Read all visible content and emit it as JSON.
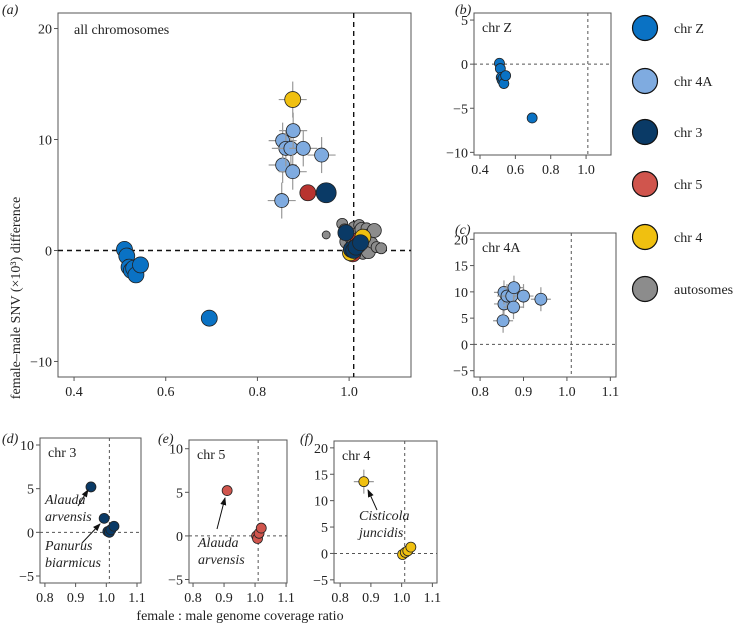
{
  "chart_data": {
    "type": "scatter",
    "xlabel": "female : male genome coverage ratio",
    "ylabel": "female–male SNV (×10³) difference",
    "colors": {
      "chrZ": "#0a72c4",
      "chr4A": "#7fabe0",
      "chr3": "#0a3a66",
      "chr5": "#b8332f",
      "chr5_light": "#d0554d",
      "chr4": "#f0c010",
      "autosomes": "#8c8c8c"
    },
    "legend": [
      {
        "key": "chrZ",
        "label": "chr Z"
      },
      {
        "key": "chr4A",
        "label": "chr 4A"
      },
      {
        "key": "chr3",
        "label": "chr 3"
      },
      {
        "key": "chr5",
        "label": "chr 5"
      },
      {
        "key": "chr4",
        "label": "chr 4"
      },
      {
        "key": "autosomes",
        "label": "autosomes"
      }
    ],
    "series": {
      "chrZ": [
        [
          0.51,
          0.1
        ],
        [
          0.515,
          -0.5
        ],
        [
          0.52,
          -1.5
        ],
        [
          0.525,
          -1.8
        ],
        [
          0.53,
          -1.6
        ],
        [
          0.535,
          -2.2
        ],
        [
          0.545,
          -1.3
        ],
        [
          0.695,
          -6.1
        ]
      ],
      "chr4A": [
        [
          0.853,
          4.5
        ],
        [
          0.855,
          7.7
        ],
        [
          0.855,
          9.9
        ],
        [
          0.862,
          9.2
        ],
        [
          0.873,
          9.2
        ],
        [
          0.877,
          7.1
        ],
        [
          0.878,
          10.8
        ],
        [
          0.9,
          9.2
        ],
        [
          0.94,
          8.6
        ]
      ],
      "chr3": [
        [
          0.95,
          5.2
        ],
        [
          0.993,
          1.6
        ],
        [
          1.005,
          0.1
        ],
        [
          1.01,
          0.0
        ],
        [
          1.015,
          0.3
        ],
        [
          1.025,
          0.7
        ]
      ],
      "chr5": [
        [
          0.91,
          5.2
        ],
        [
          1.005,
          0.0
        ],
        [
          1.008,
          -0.3
        ],
        [
          1.013,
          0.3
        ],
        [
          1.02,
          0.9
        ]
      ],
      "chr4": [
        [
          0.877,
          13.6
        ],
        [
          1.003,
          -0.2
        ],
        [
          1.012,
          0.2
        ],
        [
          1.02,
          0.5
        ],
        [
          1.03,
          1.2
        ]
      ],
      "autosomes": [
        [
          0.95,
          1.4
        ],
        [
          0.985,
          2.4
        ],
        [
          0.99,
          1.9
        ],
        [
          0.995,
          0.8
        ],
        [
          1.0,
          0.2
        ],
        [
          1.0,
          -0.4
        ],
        [
          1.005,
          1.2
        ],
        [
          1.005,
          0.5
        ],
        [
          1.01,
          2.1
        ],
        [
          1.012,
          -0.2
        ],
        [
          1.015,
          0.9
        ],
        [
          1.018,
          1.6
        ],
        [
          1.02,
          0.0
        ],
        [
          1.022,
          2.3
        ],
        [
          1.025,
          0.6
        ],
        [
          1.028,
          1.9
        ],
        [
          1.03,
          -0.3
        ],
        [
          1.032,
          1.2
        ],
        [
          1.035,
          0.4
        ],
        [
          1.038,
          2.0
        ],
        [
          1.04,
          1.0
        ],
        [
          1.042,
          -0.1
        ],
        [
          1.045,
          1.5
        ],
        [
          1.05,
          0.7
        ],
        [
          1.055,
          1.8
        ],
        [
          1.06,
          0.3
        ],
        [
          1.07,
          0.2
        ],
        [
          1.015,
          0.3
        ],
        [
          1.018,
          0.1
        ]
      ]
    },
    "panels": [
      {
        "id": "a",
        "label": "(a)",
        "title": "all chromosomes",
        "series": [
          "chrZ",
          "chr4A",
          "chr3",
          "chr5",
          "chr4",
          "autosomes"
        ],
        "xlim": [
          0.365,
          1.135
        ],
        "ylim": [
          -11.4,
          21.4
        ],
        "xticks": [
          "0.4",
          "0.6",
          "0.8",
          "1.0"
        ],
        "yticks": [
          "−10",
          "0",
          "10",
          "20"
        ],
        "ref": [
          1.01,
          0
        ]
      },
      {
        "id": "b",
        "label": "(b)",
        "title": "chr Z",
        "series": [
          "chrZ"
        ],
        "xlim": [
          0.366,
          1.141
        ],
        "ylim": [
          -10.3,
          5.8
        ],
        "xticks": [
          "0.4",
          "0.6",
          "0.8",
          "1.0"
        ],
        "yticks": [
          "−10",
          "−5",
          "0",
          "5"
        ],
        "ref": [
          1.01,
          0
        ]
      },
      {
        "id": "c",
        "label": "(c)",
        "title": "chr 4A",
        "series": [
          "chr4A"
        ],
        "xlim": [
          0.786,
          1.113
        ],
        "ylim": [
          -6.2,
          21.2
        ],
        "xticks": [
          "0.8",
          "0.9",
          "1.0",
          "1.1"
        ],
        "yticks": [
          "−5",
          "0",
          "5",
          "10",
          "15",
          "20"
        ],
        "ref": [
          1.01,
          0
        ]
      },
      {
        "id": "d",
        "label": "(d)",
        "title": "chr 3",
        "series": [
          "chr3"
        ],
        "xlim": [
          0.784,
          1.113
        ],
        "ylim": [
          -5.8,
          10.8
        ],
        "xticks": [
          "0.8",
          "0.9",
          "1.0",
          "1.1"
        ],
        "yticks": [
          "−5",
          "0",
          "5",
          "10"
        ],
        "ref": [
          1.01,
          0
        ]
      },
      {
        "id": "e",
        "label": "(e)",
        "title": "chr 5",
        "series": [
          "chr5"
        ],
        "xlim": [
          0.787,
          1.103
        ],
        "ylim": [
          -5.4,
          11.0
        ],
        "xticks": [
          "0.8",
          "0.9",
          "1.0",
          "1.1"
        ],
        "yticks": [
          "−5",
          "0",
          "5",
          "10"
        ],
        "ref": [
          1.01,
          0
        ]
      },
      {
        "id": "f",
        "label": "(f)",
        "title": "chr 4",
        "series": [
          "chr4"
        ],
        "xlim": [
          0.78,
          1.115
        ],
        "ylim": [
          -5.6,
          21.3
        ],
        "xticks": [
          "0.8",
          "0.9",
          "1.0",
          "1.1"
        ],
        "yticks": [
          "−5",
          "0",
          "5",
          "10",
          "15",
          "20"
        ],
        "ref": [
          1.01,
          0
        ]
      }
    ],
    "annotations": [
      {
        "panel": "d",
        "lines": [
          "Alauda",
          "arvensis"
        ],
        "target": [
          0.95,
          5.2
        ]
      },
      {
        "panel": "d",
        "lines": [
          "Panurus",
          "biarmicus"
        ],
        "target": [
          0.993,
          1.6
        ]
      },
      {
        "panel": "e",
        "lines": [
          "Alauda",
          "arvensis"
        ],
        "target": [
          0.91,
          5.2
        ]
      },
      {
        "panel": "f",
        "lines": [
          "Cisticola",
          "juncidis"
        ],
        "target": [
          0.877,
          13.6
        ]
      }
    ]
  }
}
